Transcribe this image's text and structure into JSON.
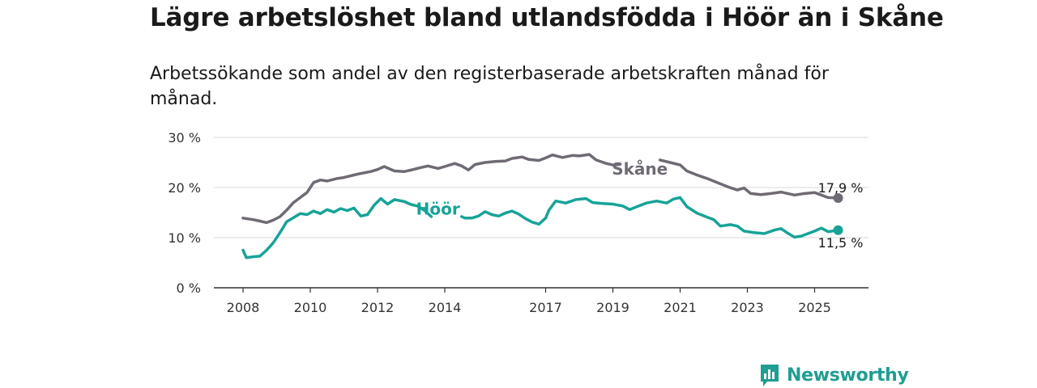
{
  "chart_data": {
    "type": "line",
    "title": "Lägre arbetslöshet bland utlandsfödda i Höör än i Skåne",
    "subtitle": "Arbetssökande som andel av den registerbaserade arbetskraften månad för månad.",
    "ylabel": "",
    "xlabel": "",
    "ylim": [
      0,
      30
    ],
    "yticks": [
      {
        "value": 0,
        "label": "0 %"
      },
      {
        "value": 10,
        "label": "10 %"
      },
      {
        "value": 20,
        "label": "20 %"
      },
      {
        "value": 30,
        "label": "30 %"
      }
    ],
    "xlim": [
      2007.0,
      2026.5
    ],
    "xticks": [
      {
        "value": 2008,
        "label": "2008"
      },
      {
        "value": 2010,
        "label": "2010"
      },
      {
        "value": 2012,
        "label": "2012"
      },
      {
        "value": 2014,
        "label": "2014"
      },
      {
        "value": 2017,
        "label": "2017"
      },
      {
        "value": 2019,
        "label": "2019"
      },
      {
        "value": 2021,
        "label": "2021"
      },
      {
        "value": 2023,
        "label": "2023"
      },
      {
        "value": 2025,
        "label": "2025"
      }
    ],
    "series": [
      {
        "name": "Skåne",
        "color": "#6f6a74",
        "end_label": "17,9 %",
        "points": [
          [
            2008.0,
            13.9
          ],
          [
            2008.3,
            13.6
          ],
          [
            2008.5,
            13.3
          ],
          [
            2008.7,
            13.0
          ],
          [
            2008.9,
            13.5
          ],
          [
            2009.1,
            14.2
          ],
          [
            2009.3,
            15.5
          ],
          [
            2009.5,
            17.0
          ],
          [
            2009.7,
            18.0
          ],
          [
            2009.9,
            19.0
          ],
          [
            2010.1,
            21.0
          ],
          [
            2010.3,
            21.5
          ],
          [
            2010.5,
            21.3
          ],
          [
            2010.8,
            21.8
          ],
          [
            2011.0,
            22.0
          ],
          [
            2011.3,
            22.5
          ],
          [
            2011.5,
            22.8
          ],
          [
            2011.8,
            23.2
          ],
          [
            2012.0,
            23.6
          ],
          [
            2012.2,
            24.2
          ],
          [
            2012.5,
            23.3
          ],
          [
            2012.8,
            23.2
          ],
          [
            2013.0,
            23.5
          ],
          [
            2013.3,
            24.0
          ],
          [
            2013.5,
            24.3
          ],
          [
            2013.8,
            23.8
          ],
          [
            2014.0,
            24.2
          ],
          [
            2014.3,
            24.8
          ],
          [
            2014.5,
            24.3
          ],
          [
            2014.7,
            23.5
          ],
          [
            2014.9,
            24.6
          ],
          [
            2015.2,
            25.0
          ],
          [
            2015.5,
            25.2
          ],
          [
            2015.8,
            25.3
          ],
          [
            2016.0,
            25.8
          ],
          [
            2016.3,
            26.1
          ],
          [
            2016.5,
            25.6
          ],
          [
            2016.8,
            25.4
          ],
          [
            2017.0,
            25.9
          ],
          [
            2017.2,
            26.5
          ],
          [
            2017.5,
            26.0
          ],
          [
            2017.8,
            26.4
          ],
          [
            2018.0,
            26.3
          ],
          [
            2018.3,
            26.6
          ],
          [
            2018.5,
            25.5
          ],
          [
            2018.8,
            24.8
          ],
          [
            2019.0,
            24.5
          ],
          [
            2019.2,
            24.6
          ]
        ]
      },
      {
        "name": "Skåne",
        "color": "#6f6a74",
        "points": [
          [
            2020.4,
            25.5
          ],
          [
            2020.7,
            25.0
          ],
          [
            2021.0,
            24.5
          ],
          [
            2021.2,
            23.3
          ],
          [
            2021.5,
            22.5
          ],
          [
            2021.8,
            21.8
          ],
          [
            2022.1,
            21.0
          ],
          [
            2022.4,
            20.2
          ],
          [
            2022.7,
            19.5
          ],
          [
            2022.9,
            19.9
          ],
          [
            2023.1,
            18.8
          ],
          [
            2023.4,
            18.6
          ],
          [
            2023.7,
            18.8
          ],
          [
            2024.0,
            19.1
          ],
          [
            2024.2,
            18.8
          ],
          [
            2024.4,
            18.5
          ],
          [
            2024.7,
            18.8
          ],
          [
            2025.0,
            19.0
          ],
          [
            2025.2,
            18.5
          ],
          [
            2025.4,
            18.0
          ],
          [
            2025.7,
            17.9
          ]
        ]
      },
      {
        "name": "Höör",
        "color": "#17a398",
        "end_label": "11,5 %",
        "points": [
          [
            2008.0,
            7.5
          ],
          [
            2008.1,
            6.0
          ],
          [
            2008.3,
            6.2
          ],
          [
            2008.5,
            6.3
          ],
          [
            2008.7,
            7.5
          ],
          [
            2008.9,
            9.0
          ],
          [
            2009.1,
            11.0
          ],
          [
            2009.3,
            13.2
          ],
          [
            2009.5,
            14.0
          ],
          [
            2009.7,
            14.8
          ],
          [
            2009.9,
            14.6
          ],
          [
            2010.1,
            15.3
          ],
          [
            2010.3,
            14.8
          ],
          [
            2010.5,
            15.6
          ],
          [
            2010.7,
            15.1
          ],
          [
            2010.9,
            15.8
          ],
          [
            2011.1,
            15.4
          ],
          [
            2011.3,
            15.9
          ],
          [
            2011.5,
            14.3
          ],
          [
            2011.7,
            14.6
          ],
          [
            2011.9,
            16.5
          ],
          [
            2012.1,
            17.8
          ],
          [
            2012.3,
            16.7
          ],
          [
            2012.5,
            17.6
          ],
          [
            2012.8,
            17.2
          ],
          [
            2013.0,
            16.6
          ],
          [
            2013.2,
            16.3
          ],
          [
            2013.4,
            15.4
          ],
          [
            2013.6,
            14.2
          ]
        ]
      },
      {
        "name": "Höör",
        "color": "#17a398",
        "points": [
          [
            2014.5,
            14.2
          ],
          [
            2014.6,
            13.9
          ],
          [
            2014.8,
            13.9
          ],
          [
            2015.0,
            14.3
          ],
          [
            2015.2,
            15.2
          ],
          [
            2015.4,
            14.6
          ],
          [
            2015.6,
            14.3
          ],
          [
            2015.8,
            14.9
          ],
          [
            2016.0,
            15.3
          ],
          [
            2016.2,
            14.7
          ],
          [
            2016.4,
            13.8
          ],
          [
            2016.6,
            13.1
          ],
          [
            2016.8,
            12.7
          ],
          [
            2017.0,
            13.9
          ],
          [
            2017.1,
            15.5
          ],
          [
            2017.3,
            17.3
          ],
          [
            2017.6,
            16.9
          ],
          [
            2017.9,
            17.6
          ],
          [
            2018.2,
            17.8
          ],
          [
            2018.4,
            17.0
          ],
          [
            2018.7,
            16.8
          ],
          [
            2019.0,
            16.7
          ],
          [
            2019.3,
            16.3
          ],
          [
            2019.5,
            15.6
          ],
          [
            2019.8,
            16.4
          ],
          [
            2020.0,
            16.9
          ],
          [
            2020.3,
            17.3
          ],
          [
            2020.6,
            16.9
          ],
          [
            2020.8,
            17.7
          ],
          [
            2021.0,
            18.0
          ],
          [
            2021.2,
            16.2
          ],
          [
            2021.5,
            14.9
          ],
          [
            2021.8,
            14.1
          ],
          [
            2022.0,
            13.6
          ],
          [
            2022.2,
            12.3
          ],
          [
            2022.5,
            12.6
          ],
          [
            2022.7,
            12.3
          ],
          [
            2022.9,
            11.3
          ],
          [
            2023.2,
            11.0
          ],
          [
            2023.5,
            10.8
          ],
          [
            2023.8,
            11.5
          ],
          [
            2024.0,
            11.8
          ],
          [
            2024.2,
            10.9
          ],
          [
            2024.4,
            10.1
          ],
          [
            2024.6,
            10.3
          ],
          [
            2024.8,
            10.8
          ],
          [
            2025.0,
            11.3
          ],
          [
            2025.2,
            11.9
          ],
          [
            2025.4,
            11.2
          ],
          [
            2025.7,
            11.5
          ]
        ]
      }
    ],
    "labels": [
      {
        "text": "Skåne",
        "color": "#6f6a74",
        "x": 2019.8,
        "y": 22.6
      },
      {
        "text": "Höör",
        "color": "#17a398",
        "x": 2013.8,
        "y": 14.6
      }
    ],
    "end_points": [
      {
        "series": "Skåne",
        "x": 2025.7,
        "y": 17.9,
        "color": "#6f6a74",
        "label": "17,9 %",
        "label_y": 20.0
      },
      {
        "series": "Höör",
        "x": 2025.7,
        "y": 11.5,
        "color": "#17a398",
        "label": "11,5 %",
        "label_y": 9.0
      }
    ],
    "grid": true,
    "legend": "inline"
  },
  "logo": {
    "text": "Newsworthy",
    "icon": "newsworthy-chart-icon",
    "color": "#1f9e92"
  }
}
